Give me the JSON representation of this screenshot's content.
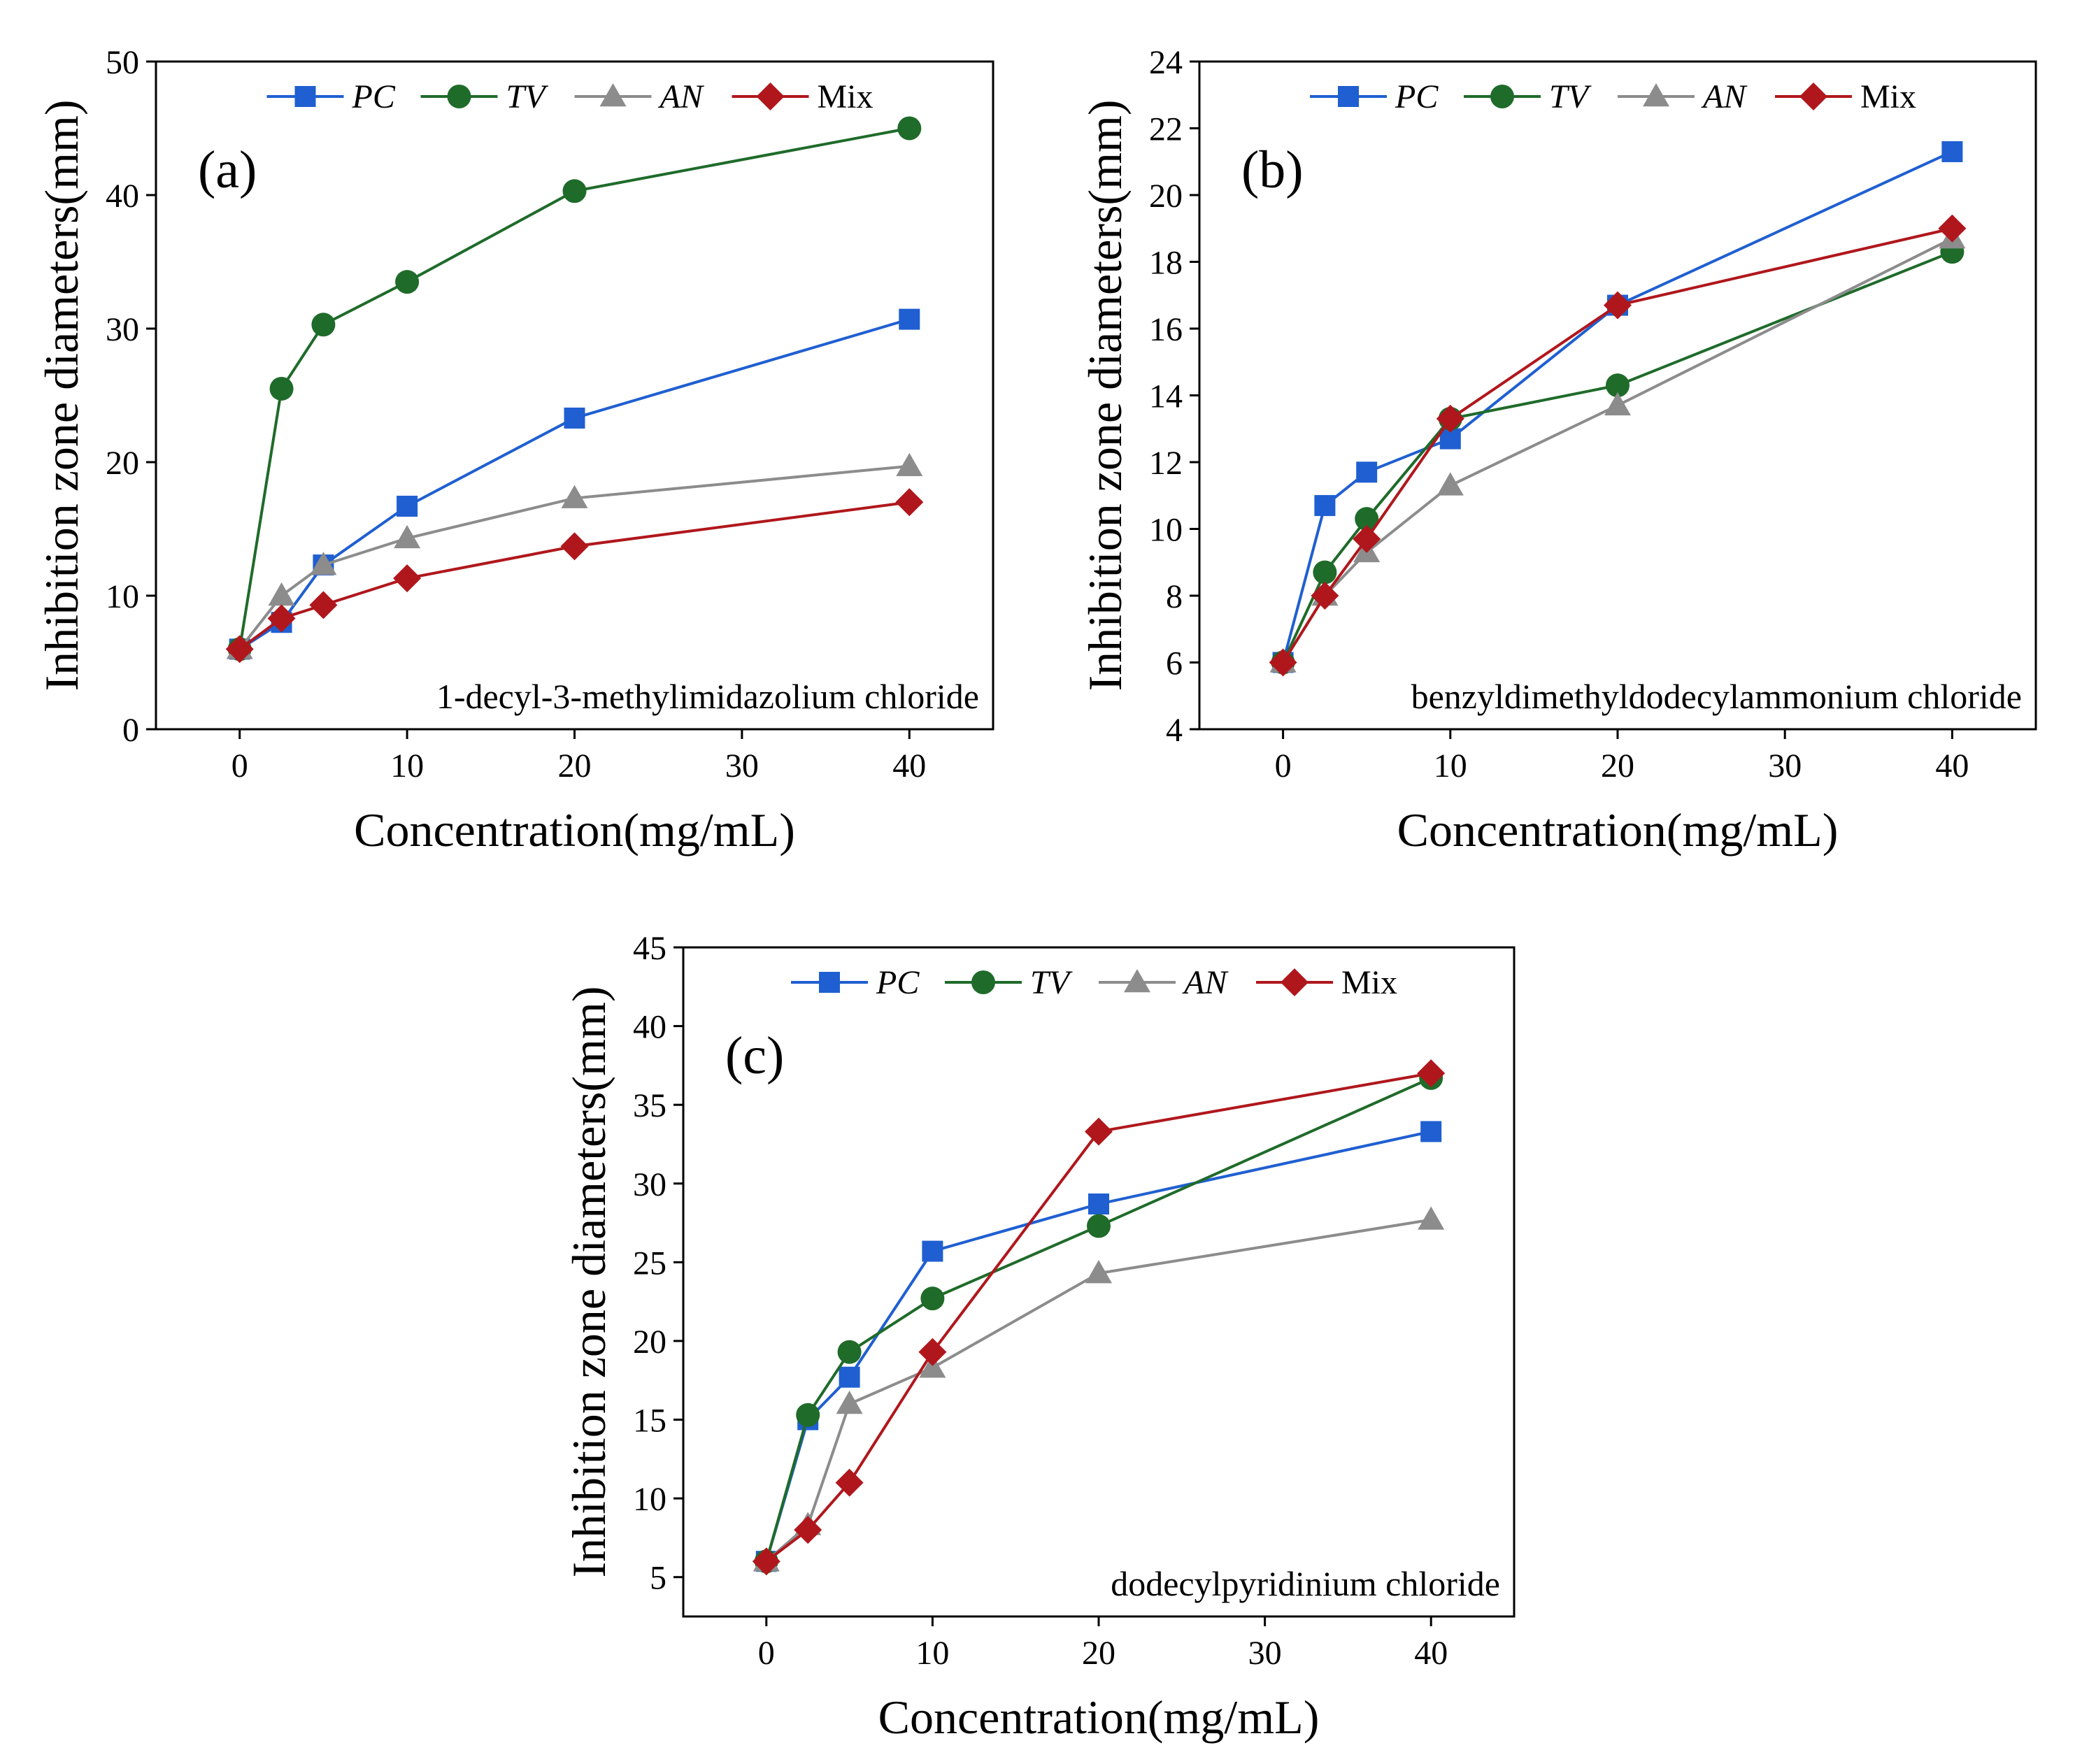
{
  "figure": {
    "series_styles": [
      {
        "name": "PC",
        "color": "#1f5fd1",
        "marker": "square",
        "italic": true
      },
      {
        "name": "TV",
        "color": "#1f6b2a",
        "marker": "circle",
        "italic": true
      },
      {
        "name": "AN",
        "color": "#8c8c8c",
        "marker": "triangle",
        "italic": true
      },
      {
        "name": "Mix",
        "color": "#b0171c",
        "marker": "diamond",
        "italic": false
      }
    ]
  },
  "chart_data": [
    {
      "type": "line",
      "panel_label": "(a)",
      "annotation": "1-decyl-3-methylimidazolium chloride",
      "xlabel": "Concentration(mg/mL)",
      "ylabel": "Inhibition zone diameters(mm)",
      "xlim": [
        -5,
        45
      ],
      "ylim": [
        0,
        50
      ],
      "xticks": [
        0,
        10,
        20,
        30,
        40
      ],
      "yticks": [
        0,
        10,
        20,
        30,
        40,
        50
      ],
      "x": [
        0,
        2.5,
        5,
        10,
        20,
        40
      ],
      "series": [
        {
          "name": "PC",
          "values": [
            6.0,
            8.0,
            12.3,
            16.7,
            23.3,
            30.7
          ]
        },
        {
          "name": "TV",
          "values": [
            6.0,
            25.5,
            30.3,
            33.5,
            40.3,
            45.0
          ]
        },
        {
          "name": "AN",
          "values": [
            6.0,
            10.0,
            12.3,
            14.3,
            17.3,
            19.7
          ]
        },
        {
          "name": "Mix",
          "values": [
            6.0,
            8.3,
            9.3,
            11.3,
            13.7,
            17.0
          ]
        }
      ]
    },
    {
      "type": "line",
      "panel_label": "(b)",
      "annotation": "benzyldimethyldodecylammonium chloride",
      "xlabel": "Concentration(mg/mL)",
      "ylabel": "Inhibition zone diameters(mm)",
      "xlim": [
        -5,
        45
      ],
      "ylim": [
        4,
        24
      ],
      "xticks": [
        0,
        10,
        20,
        30,
        40
      ],
      "yticks": [
        4,
        6,
        8,
        10,
        12,
        14,
        16,
        18,
        20,
        22,
        24
      ],
      "x": [
        0,
        2.5,
        5,
        10,
        20,
        40
      ],
      "series": [
        {
          "name": "PC",
          "values": [
            6.0,
            10.7,
            11.7,
            12.7,
            16.7,
            21.3
          ]
        },
        {
          "name": "TV",
          "values": [
            6.0,
            8.7,
            10.3,
            13.3,
            14.3,
            18.3
          ]
        },
        {
          "name": "AN",
          "values": [
            6.0,
            8.0,
            9.3,
            11.3,
            13.7,
            18.7
          ]
        },
        {
          "name": "Mix",
          "values": [
            6.0,
            8.0,
            9.7,
            13.3,
            16.7,
            19.0
          ]
        }
      ]
    },
    {
      "type": "line",
      "panel_label": "(c)",
      "annotation": "dodecylpyridinium chloride",
      "xlabel": "Concentration(mg/mL)",
      "ylabel": "Inhibition zone diameters(mm)",
      "xlim": [
        -5,
        45
      ],
      "ylim": [
        2.5,
        45
      ],
      "xticks": [
        0,
        10,
        20,
        30,
        40
      ],
      "yticks": [
        5,
        10,
        15,
        20,
        25,
        30,
        35,
        40,
        45
      ],
      "x": [
        0,
        2.5,
        5,
        10,
        20,
        40
      ],
      "series": [
        {
          "name": "PC",
          "values": [
            6.0,
            15.0,
            17.7,
            25.7,
            28.7,
            33.3
          ]
        },
        {
          "name": "TV",
          "values": [
            6.0,
            15.3,
            19.3,
            22.7,
            27.3,
            36.7
          ]
        },
        {
          "name": "AN",
          "values": [
            6.0,
            8.3,
            16.0,
            18.3,
            24.3,
            27.7
          ]
        },
        {
          "name": "Mix",
          "values": [
            6.0,
            8.0,
            11.0,
            19.3,
            33.3,
            37.0
          ]
        }
      ]
    }
  ]
}
